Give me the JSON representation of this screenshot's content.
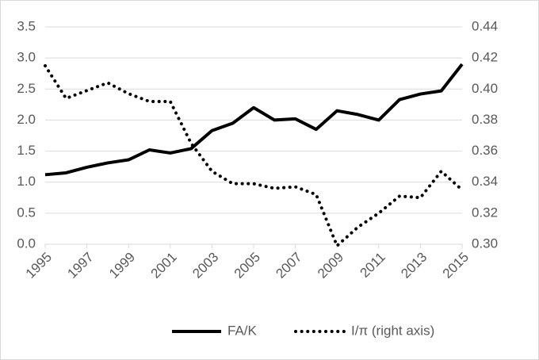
{
  "chart_data": {
    "type": "line",
    "x": [
      1995,
      1996,
      1997,
      1998,
      1999,
      2000,
      2001,
      2002,
      2003,
      2004,
      2005,
      2006,
      2007,
      2008,
      2009,
      2010,
      2011,
      2012,
      2013,
      2014,
      2015
    ],
    "xlim": [
      1995,
      2015
    ],
    "xticks": [
      1995,
      1997,
      1999,
      2001,
      2003,
      2005,
      2007,
      2009,
      2011,
      2013,
      2015
    ],
    "ylim": [
      0,
      3.5
    ],
    "yticks": [
      {
        "value": 0,
        "label": "0.0"
      },
      0.5,
      {
        "value": 1,
        "label": "1.0"
      },
      1.5,
      {
        "value": 2,
        "label": "2.0"
      },
      2.5,
      {
        "value": 3,
        "label": "3.0"
      },
      3.5
    ],
    "y2lim": [
      0.3,
      0.44
    ],
    "y2ticks": [
      {
        "value": 0.3,
        "label": "0.30"
      },
      0.32,
      0.34,
      0.36,
      0.38,
      {
        "value": 0.4,
        "label": "0.40"
      },
      0.42,
      0.44
    ],
    "grid": true,
    "legend": "bottom",
    "series": [
      {
        "name": "FA/K",
        "color": "#000000",
        "style": "solid",
        "values": [
          1.12,
          1.15,
          1.24,
          1.31,
          1.36,
          1.52,
          1.47,
          1.54,
          1.83,
          1.95,
          2.2,
          2.0,
          2.02,
          1.85,
          2.15,
          2.09,
          2.0,
          2.33,
          2.42,
          2.47,
          2.9
        ]
      },
      {
        "name": "I/π (right axis)",
        "color": "#000000",
        "style": "dotted",
        "axis": "y2",
        "values": [
          0.415,
          0.394,
          0.399,
          0.404,
          0.397,
          0.392,
          0.392,
          0.365,
          0.347,
          0.339,
          0.339,
          0.336,
          0.337,
          0.332,
          0.299,
          0.311,
          0.32,
          0.331,
          0.33,
          0.347,
          0.335
        ]
      }
    ]
  }
}
